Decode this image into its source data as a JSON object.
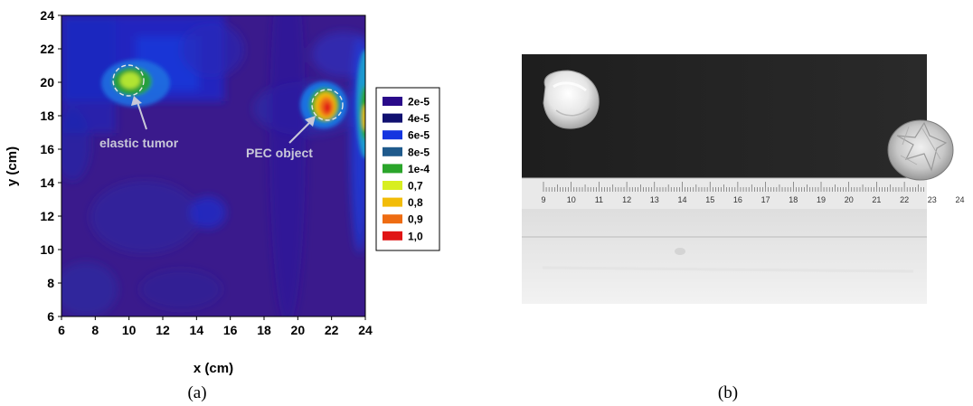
{
  "chart_data": {
    "type": "heatmap",
    "xlabel": "x (cm)",
    "ylabel": "y (cm)",
    "xlim": [
      6,
      24
    ],
    "ylim": [
      6,
      24
    ],
    "x_ticks": [
      "6",
      "8",
      "10",
      "12",
      "14",
      "16",
      "18",
      "20",
      "22",
      "24"
    ],
    "y_ticks": [
      "6",
      "8",
      "10",
      "12",
      "14",
      "16",
      "18",
      "20",
      "22",
      "24"
    ],
    "grid": false,
    "legend_placement": "right",
    "legend": [
      {
        "label": "2e-5",
        "color": "#2a0a8a"
      },
      {
        "label": "4e-5",
        "color": "#101070"
      },
      {
        "label": "6e-5",
        "color": "#1535e0"
      },
      {
        "label": "8e-5",
        "color": "#1f5a8c"
      },
      {
        "label": "1e-4",
        "color": "#2aa52a"
      },
      {
        "label": "0,7",
        "color": "#d8ee20"
      },
      {
        "label": "0,8",
        "color": "#f2bc08"
      },
      {
        "label": "0,9",
        "color": "#ee6c12"
      },
      {
        "label": "1,0",
        "color": "#e01414"
      }
    ],
    "background_color": "#3a1a8c",
    "hotspots": [
      {
        "x": 10.2,
        "y": 19.8,
        "peak_level": "1e-4"
      },
      {
        "x": 21.9,
        "y": 18.7,
        "peak_level": "1,0"
      },
      {
        "x": 24.0,
        "y": 18.0,
        "peak_level": "0,8"
      }
    ],
    "annotations": [
      {
        "text": "elastic tumor",
        "target_x": 10.2,
        "target_y": 19.8
      },
      {
        "text": "PEC object",
        "target_x": 21.9,
        "target_y": 18.7
      }
    ]
  },
  "panels": {
    "left_label": "(a)",
    "right_label": "(b)"
  },
  "photo": {
    "ruler_numbers": [
      "9",
      "10",
      "11",
      "12",
      "13",
      "14",
      "15",
      "16",
      "17",
      "18",
      "19",
      "20",
      "21",
      "22",
      "23",
      "24"
    ]
  }
}
